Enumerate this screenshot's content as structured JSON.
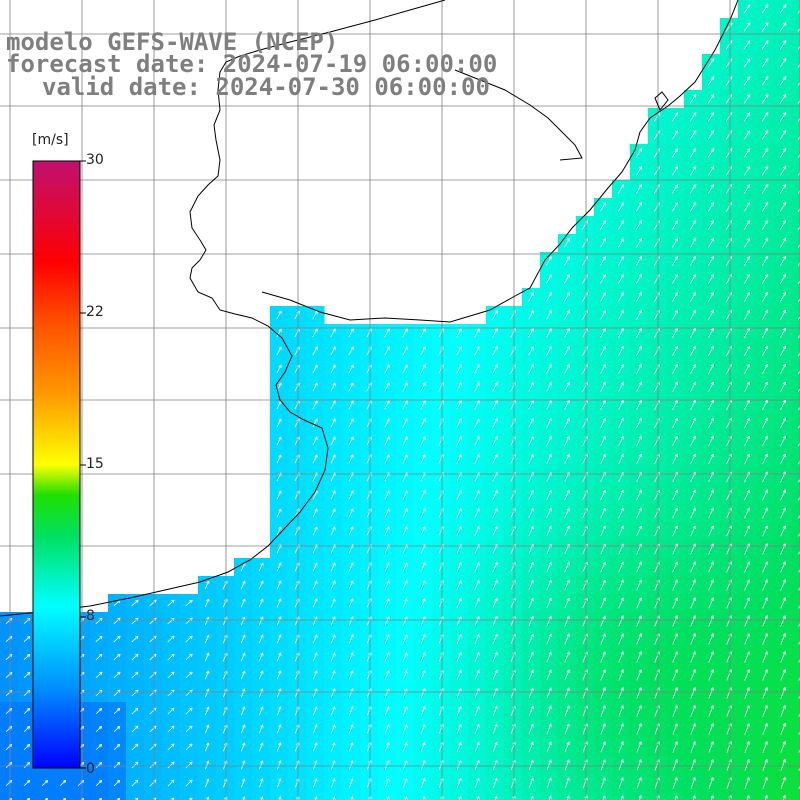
{
  "title": {
    "line1": "modelo GEFS-WAVE (NCEP)",
    "line2": "forecast date: 2024-07-19 06:00:00",
    "line3": "valid date: 2024-07-30 06:00:00"
  },
  "colorbar": {
    "unit": "[m/s]",
    "labels": [
      "30",
      "22",
      "15",
      "8",
      "0"
    ],
    "stops": [
      {
        "value": 0,
        "color": "#0000ff"
      },
      {
        "value": 4,
        "color": "#0090ff"
      },
      {
        "value": 8,
        "color": "#00ffff"
      },
      {
        "value": 11.5,
        "color": "#00e060"
      },
      {
        "value": 13.5,
        "color": "#20e000"
      },
      {
        "value": 15,
        "color": "#ffff00"
      },
      {
        "value": 18.5,
        "color": "#ff9800"
      },
      {
        "value": 22,
        "color": "#ff5000"
      },
      {
        "value": 25,
        "color": "#ff0000"
      },
      {
        "value": 30,
        "color": "#c01070"
      }
    ]
  },
  "map": {
    "variable": "wind speed",
    "arrow_color": "#ffffff",
    "land_color": "#ffffff",
    "coastline_color": "#000000",
    "graticule_color": "#808080"
  }
}
